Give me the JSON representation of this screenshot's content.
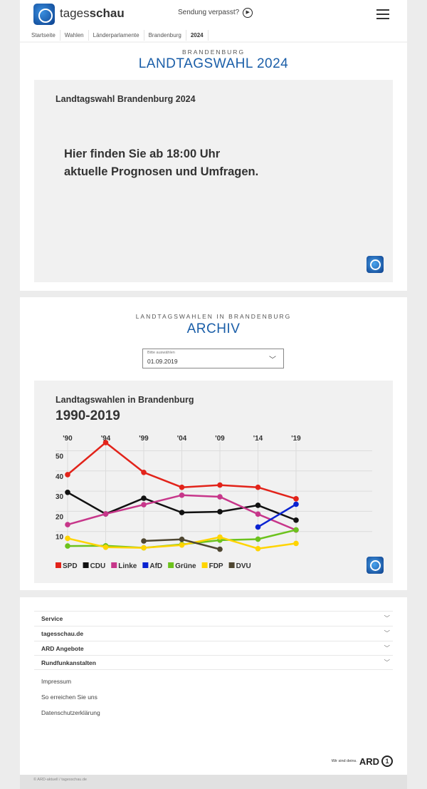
{
  "header": {
    "brand_light": "tages",
    "brand_bold": "schau",
    "missed": "Sendung verpasst?"
  },
  "breadcrumb": [
    "Startseite",
    "Wahlen",
    "Länderparlamente",
    "Brandenburg",
    "2024"
  ],
  "section1": {
    "kicker": "BRANDENBURG",
    "title": "LANDTAGSWAHL 2024",
    "teaser_title": "Landtagswahl Brandenburg 2024",
    "teaser_message": "Hier finden Sie ab 18:00 Uhr\naktuelle Prognosen und Umfragen."
  },
  "section2": {
    "kicker": "LANDTAGSWAHLEN IN BRANDENBURG",
    "title": "ARCHIV",
    "select": {
      "placeholder": "Bitte auswählen",
      "value": "01.09.2019"
    }
  },
  "chart_data": {
    "type": "line",
    "title": "Landtagswahlen in Brandenburg",
    "subtitle": "1990-2019",
    "categories": [
      "'90",
      "'94",
      "'99",
      "'04",
      "'09",
      "'14",
      "'19"
    ],
    "yticks": [
      "50",
      "40",
      "30",
      "20",
      "10"
    ],
    "ylim": [
      0,
      55
    ],
    "grid": true,
    "legend_position": "bottom-left",
    "series": [
      {
        "name": "SPD",
        "color": "#e2231a",
        "values": [
          38.2,
          54.1,
          39.3,
          31.9,
          33.0,
          31.9,
          26.2
        ]
      },
      {
        "name": "CDU",
        "color": "#111111",
        "values": [
          29.4,
          18.7,
          26.5,
          19.4,
          19.8,
          23.0,
          15.6
        ]
      },
      {
        "name": "Linke",
        "color": "#c7368a",
        "values": [
          13.4,
          18.7,
          23.3,
          28.0,
          27.2,
          18.6,
          10.7
        ]
      },
      {
        "name": "AfD",
        "color": "#0a23d1",
        "values": [
          null,
          null,
          null,
          null,
          null,
          12.2,
          23.5
        ]
      },
      {
        "name": "Grüne",
        "color": "#6cc21d",
        "values": [
          2.8,
          2.9,
          1.9,
          3.6,
          5.7,
          6.2,
          10.8
        ]
      },
      {
        "name": "FDP",
        "color": "#ffd400",
        "values": [
          6.6,
          2.2,
          1.9,
          3.3,
          7.2,
          1.5,
          4.1
        ]
      },
      {
        "name": "DVU",
        "color": "#4e4631",
        "values": [
          null,
          null,
          5.3,
          6.1,
          1.2,
          null,
          null
        ]
      }
    ]
  },
  "footer": {
    "accordion": [
      "Service",
      "tagesschau.de",
      "ARD Angebote",
      "Rundfunkanstalten"
    ],
    "links": [
      "Impressum",
      "So erreichen Sie uns",
      "Datenschutzerklärung"
    ],
    "slogan": "Wir sind deins.",
    "ard": "ARD",
    "copyright": "© ARD-aktuell / tagesschau.de"
  }
}
